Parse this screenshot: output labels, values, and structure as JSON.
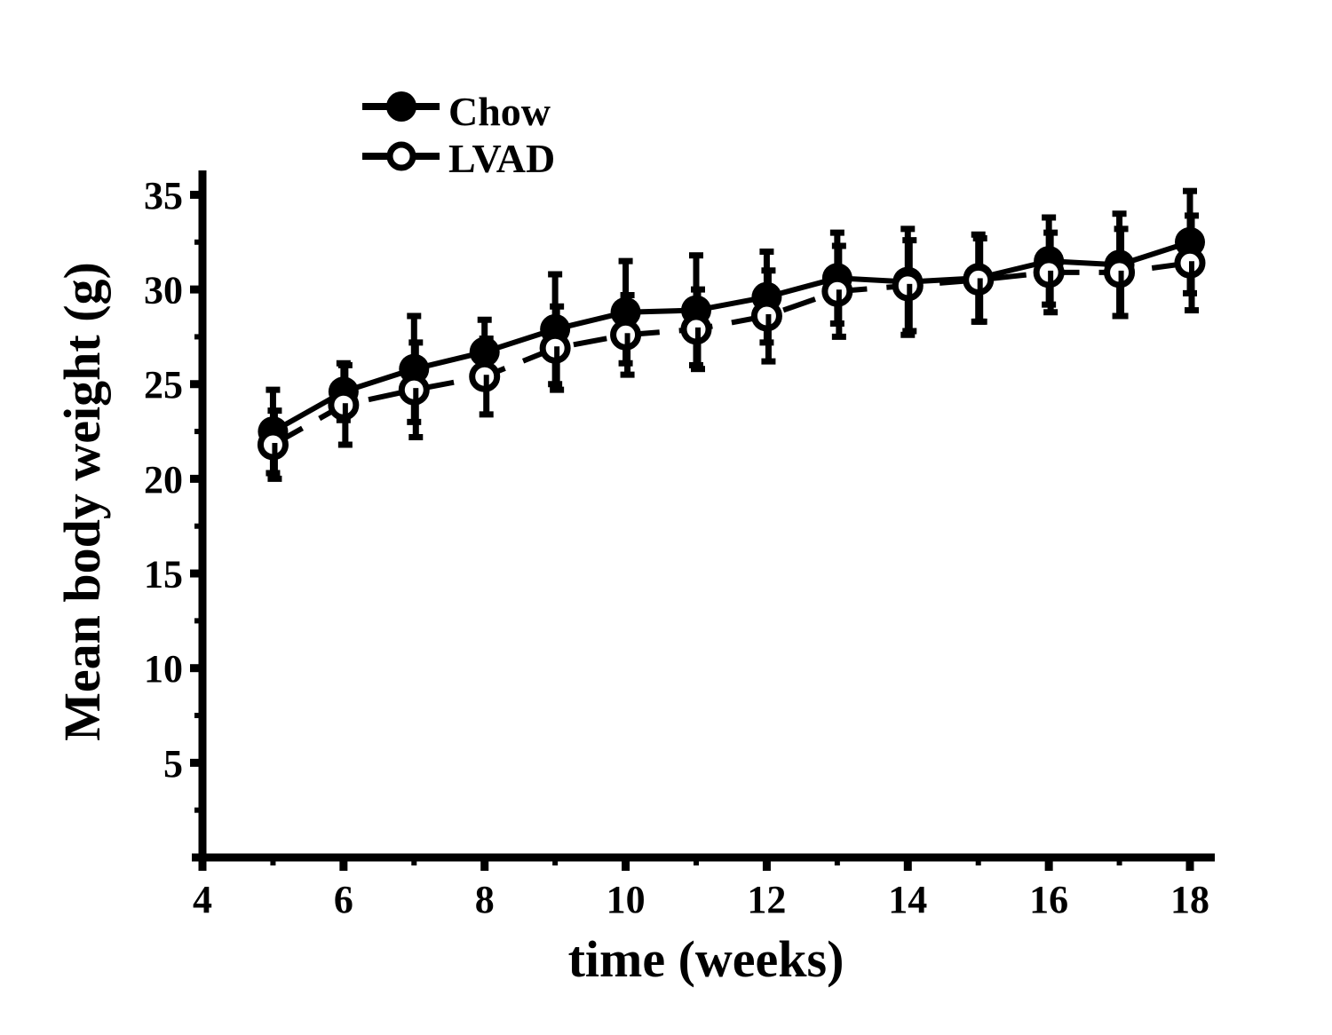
{
  "chart_data": {
    "type": "line",
    "title": "",
    "xlabel": "time (weeks)",
    "ylabel": "Mean body weight (g)",
    "xlim": [
      4,
      18
    ],
    "ylim": [
      0,
      36
    ],
    "xticks": [
      4,
      6,
      8,
      10,
      12,
      14,
      16,
      18
    ],
    "yticks": [
      5,
      10,
      15,
      20,
      25,
      30,
      35
    ],
    "grid": false,
    "legend_position": "top-left",
    "x": [
      5,
      6,
      7,
      8,
      9,
      10,
      11,
      12,
      13,
      14,
      15,
      16,
      17,
      18
    ],
    "series": [
      {
        "name": "Chow",
        "marker": "filled-circle",
        "line": "solid",
        "values": [
          22.5,
          24.6,
          25.8,
          26.7,
          27.9,
          28.8,
          28.9,
          29.6,
          30.6,
          30.4,
          30.6,
          31.5,
          31.3,
          32.5
        ],
        "errors": [
          2.2,
          1.5,
          2.8,
          1.7,
          2.9,
          2.7,
          2.9,
          2.4,
          2.4,
          2.8,
          2.3,
          2.3,
          2.7,
          2.7
        ]
      },
      {
        "name": "LVAD",
        "marker": "open-circle",
        "line": "dashed",
        "values": [
          21.8,
          23.9,
          24.7,
          25.4,
          26.9,
          27.6,
          27.9,
          28.6,
          29.9,
          30.2,
          30.5,
          30.9,
          30.9,
          31.4
        ],
        "errors": [
          1.8,
          2.1,
          2.5,
          2.0,
          2.2,
          2.1,
          2.1,
          2.4,
          2.4,
          2.4,
          2.2,
          2.1,
          2.3,
          2.5
        ]
      }
    ]
  }
}
